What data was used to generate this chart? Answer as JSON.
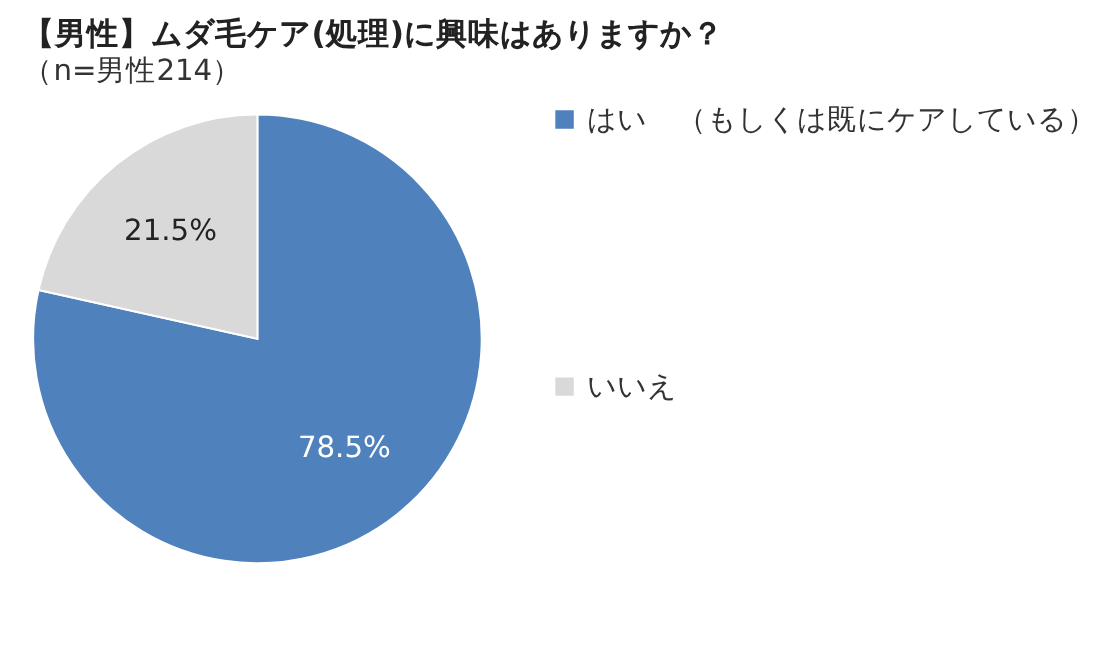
{
  "chart_data": {
    "type": "pie",
    "title": "【男性】ムダ毛ケア(処理)に興味はありますか？",
    "subtitle": "（n=男性214）",
    "categories": [
      "はい　（もしくは既にケアしている）",
      "いいえ"
    ],
    "values": [
      78.5,
      21.5
    ],
    "colors": [
      "#4f81bd",
      "#d9d9d9"
    ],
    "value_labels": [
      "78.5%",
      "21.5%"
    ],
    "legend": "right"
  }
}
